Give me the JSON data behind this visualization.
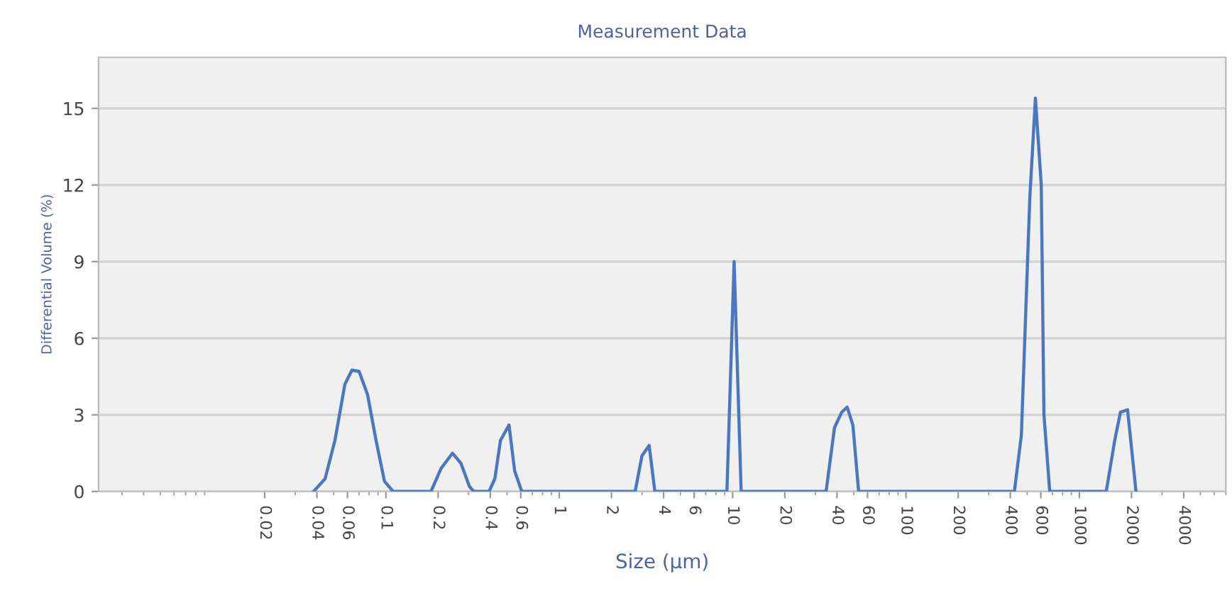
{
  "chart_data": {
    "type": "line",
    "title": "Measurement Data",
    "xlabel": "Size (µm)",
    "ylabel": "Differential Volume (%)",
    "log": "x",
    "grid": "y",
    "marker": "none",
    "line_style": "solid",
    "xlim": [
      0.0022,
      7000
    ],
    "xticks": [
      0.02,
      0.04,
      0.06,
      0.1,
      0.2,
      0.4,
      0.6,
      1,
      2,
      4,
      6,
      10,
      20,
      40,
      60,
      100,
      200,
      400,
      600,
      1000,
      2000,
      4000
    ],
    "ylim": [
      0,
      17
    ],
    "yticks": [
      0,
      3,
      6,
      9,
      12,
      15
    ],
    "x": [
      0.0383,
      0.0446,
      0.0508,
      0.058,
      0.0637,
      0.07,
      0.0783,
      0.0877,
      0.0981,
      0.11,
      0.182,
      0.208,
      0.242,
      0.271,
      0.303,
      0.321,
      0.394,
      0.425,
      0.458,
      0.513,
      0.553,
      0.608,
      2.74,
      3.0,
      3.3,
      3.56,
      9.27,
      10.2,
      11.2,
      34.6,
      38.7,
      42.6,
      45.8,
      49.4,
      53.3,
      422,
      463,
      518,
      558,
      603,
      625,
      675,
      1429,
      1600,
      1726,
      1897,
      2123
    ],
    "series": [
      {
        "color": "#4a78c0",
        "values": [
          0,
          0.5,
          2,
          4.2,
          4.75,
          4.7,
          3.8,
          2,
          0.4,
          0,
          0,
          0.9,
          1.5,
          1.1,
          0.2,
          0,
          0,
          0.5,
          2.0,
          2.6,
          0.8,
          0,
          0,
          1.4,
          1.8,
          0,
          0,
          9.0,
          0,
          0,
          2.5,
          3.1,
          3.3,
          2.6,
          0,
          0,
          2.2,
          11.5,
          15.4,
          12,
          3,
          0,
          0,
          2,
          3.1,
          3.2,
          0
        ]
      }
    ]
  }
}
